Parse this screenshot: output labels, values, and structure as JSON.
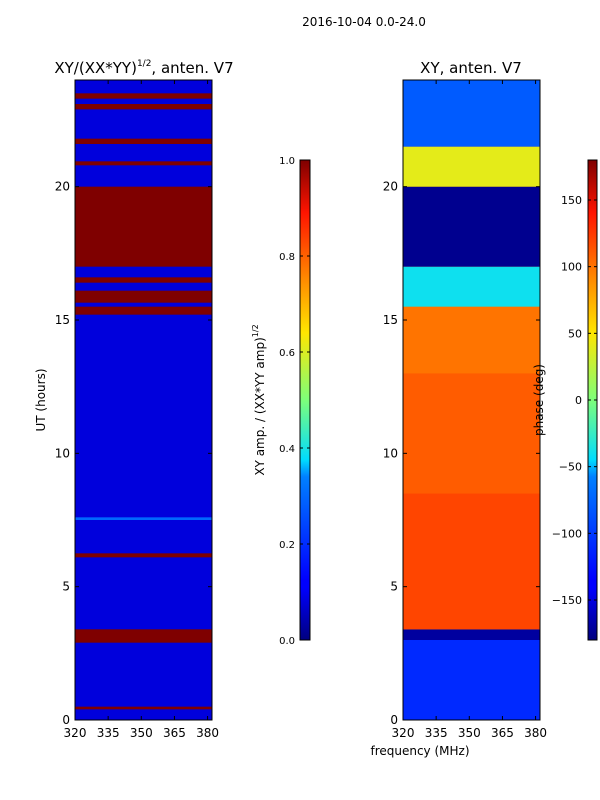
{
  "suptitle": "2016-10-04 0.0-24.0",
  "shared_xlabel": "frequency (MHz)",
  "chart_data": [
    {
      "type": "heatmap",
      "title": "XY/(XX*YY)^1/2, anten. V7",
      "title_main": "XY/(XX*YY)",
      "title_sup": "1/2",
      "title_tail": ", anten. V7",
      "xlabel": "",
      "ylabel": "UT (hours)",
      "xlim": [
        320,
        382
      ],
      "ylim": [
        0,
        24
      ],
      "x_ticks": [
        320,
        335,
        350,
        365,
        380
      ],
      "y_ticks": [
        0,
        5,
        10,
        15,
        20
      ],
      "colorbar": {
        "label": "XY amp. / (XX*YY amp)^1/2",
        "label_main": "XY amp. / (XX*YY amp)",
        "label_sup": "1/2",
        "ticks": [
          0.0,
          0.2,
          0.4,
          0.6,
          0.8,
          1.0
        ],
        "tick_labels": [
          "0.0",
          "0.2",
          "0.4",
          "0.6",
          "0.8",
          "1.0"
        ],
        "range": [
          0,
          1
        ]
      },
      "bands": [
        {
          "from": 0.4,
          "to": 0.5,
          "value": 1.0
        },
        {
          "from": 2.9,
          "to": 3.4,
          "value": 1.0
        },
        {
          "from": 6.1,
          "to": 6.25,
          "value": 1.0
        },
        {
          "from": 7.5,
          "to": 7.6,
          "value": 0.3
        },
        {
          "from": 15.2,
          "to": 15.5,
          "value": 1.0
        },
        {
          "from": 15.65,
          "to": 16.1,
          "value": 1.0
        },
        {
          "from": 16.4,
          "to": 16.6,
          "value": 1.0
        },
        {
          "from": 17.0,
          "to": 20.0,
          "value": 1.0
        },
        {
          "from": 20.8,
          "to": 20.95,
          "value": 1.0
        },
        {
          "from": 21.6,
          "to": 21.8,
          "value": 1.0
        },
        {
          "from": 22.9,
          "to": 23.1,
          "value": 1.0
        },
        {
          "from": 23.3,
          "to": 23.5,
          "value": 1.0
        }
      ]
    },
    {
      "type": "heatmap",
      "title": "XY, anten. V7",
      "xlabel": "frequency (MHz)",
      "ylabel": "",
      "xlim": [
        320,
        382
      ],
      "ylim": [
        0,
        24
      ],
      "x_ticks": [
        320,
        335,
        350,
        365,
        380
      ],
      "y_ticks": [
        0,
        5,
        10,
        15,
        20
      ],
      "colorbar": {
        "label": "phase (deg)",
        "ticks": [
          -150,
          -100,
          -50,
          0,
          50,
          100,
          150
        ],
        "tick_labels": [
          "−150",
          "−100",
          "−50",
          "0",
          "50",
          "100",
          "150"
        ],
        "range": [
          -180,
          180
        ]
      },
      "bands": [
        {
          "from": 0.0,
          "to": 3.0,
          "value": -110
        },
        {
          "from": 3.0,
          "to": 3.4,
          "value": -170
        },
        {
          "from": 3.4,
          "to": 8.5,
          "value": 120
        },
        {
          "from": 8.5,
          "to": 13.0,
          "value": 110
        },
        {
          "from": 13.0,
          "to": 15.5,
          "value": 100
        },
        {
          "from": 15.5,
          "to": 17.0,
          "value": -40
        },
        {
          "from": 17.0,
          "to": 20.0,
          "value": -175
        },
        {
          "from": 20.0,
          "to": 21.5,
          "value": 40
        },
        {
          "from": 21.5,
          "to": 24.0,
          "value": -80
        }
      ]
    }
  ]
}
